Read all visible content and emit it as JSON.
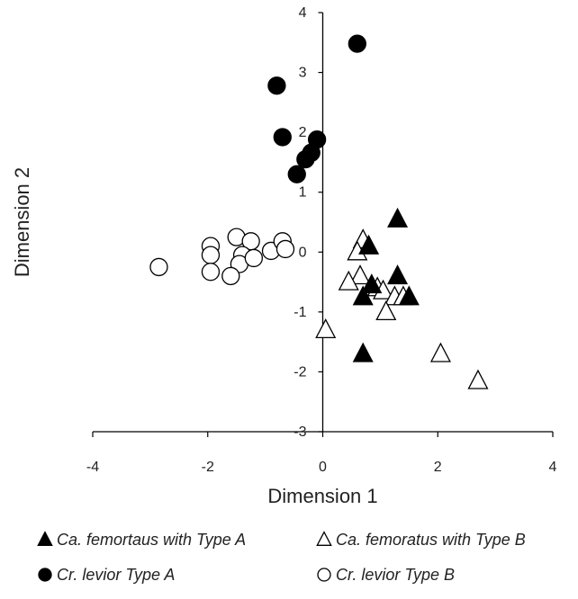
{
  "chart_data": {
    "type": "scatter",
    "xlabel": "Dimension 1",
    "ylabel": "Dimension 2",
    "xlim": [
      -4,
      4
    ],
    "ylim": [
      -3,
      4
    ],
    "x_ticks": [
      -4,
      -2,
      0,
      2,
      4
    ],
    "y_ticks": [
      -3,
      -2,
      -1,
      0,
      1,
      2,
      3,
      4
    ],
    "x_tick_labels": [
      "-4",
      "-2",
      "0",
      "2",
      "4"
    ],
    "y_tick_labels": [
      "-3",
      "-2",
      "-1",
      "0",
      "1",
      "2",
      "3",
      "4"
    ],
    "grid": false,
    "legend_position": "bottom",
    "series": [
      {
        "name": "Ca. femortaus with Type A",
        "marker": "triangle",
        "fill": "filled",
        "points": [
          [
            1.3,
            0.55
          ],
          [
            0.8,
            0.1
          ],
          [
            1.3,
            -0.4
          ],
          [
            0.85,
            -0.55
          ],
          [
            1.5,
            -0.75
          ],
          [
            0.7,
            -0.75
          ],
          [
            0.7,
            -1.7
          ]
        ]
      },
      {
        "name": "Ca. femoratus with Type B",
        "marker": "triangle",
        "fill": "open",
        "points": [
          [
            0.7,
            0.2
          ],
          [
            0.6,
            0.0
          ],
          [
            0.65,
            -0.4
          ],
          [
            0.45,
            -0.5
          ],
          [
            0.95,
            -0.6
          ],
          [
            1.05,
            -0.65
          ],
          [
            1.25,
            -0.75
          ],
          [
            1.4,
            -0.75
          ],
          [
            1.1,
            -1.0
          ],
          [
            0.05,
            -1.3
          ],
          [
            2.05,
            -1.7
          ],
          [
            2.7,
            -2.15
          ]
        ]
      },
      {
        "name": "Cr. levior Type A",
        "marker": "circle",
        "fill": "filled",
        "points": [
          [
            0.6,
            3.48
          ],
          [
            -0.8,
            2.78
          ],
          [
            -0.7,
            1.92
          ],
          [
            -0.1,
            1.88
          ],
          [
            -0.2,
            1.66
          ],
          [
            -0.3,
            1.55
          ],
          [
            -0.45,
            1.3
          ]
        ]
      },
      {
        "name": "Cr. levior Type B",
        "marker": "circle",
        "fill": "open",
        "points": [
          [
            -2.85,
            -0.25
          ],
          [
            -1.95,
            0.1
          ],
          [
            -1.95,
            -0.05
          ],
          [
            -1.95,
            -0.33
          ],
          [
            -1.5,
            0.25
          ],
          [
            -1.25,
            0.18
          ],
          [
            -1.4,
            -0.05
          ],
          [
            -1.45,
            -0.2
          ],
          [
            -1.2,
            -0.1
          ],
          [
            -0.9,
            0.02
          ],
          [
            -0.7,
            0.18
          ],
          [
            -0.65,
            0.05
          ],
          [
            -1.6,
            -0.4
          ]
        ]
      }
    ]
  },
  "colors": {
    "filled_marker": "#000000",
    "open_marker_fill": "#ffffff",
    "marker_stroke": "#000000",
    "axis": "#000000",
    "text": "#222222"
  }
}
